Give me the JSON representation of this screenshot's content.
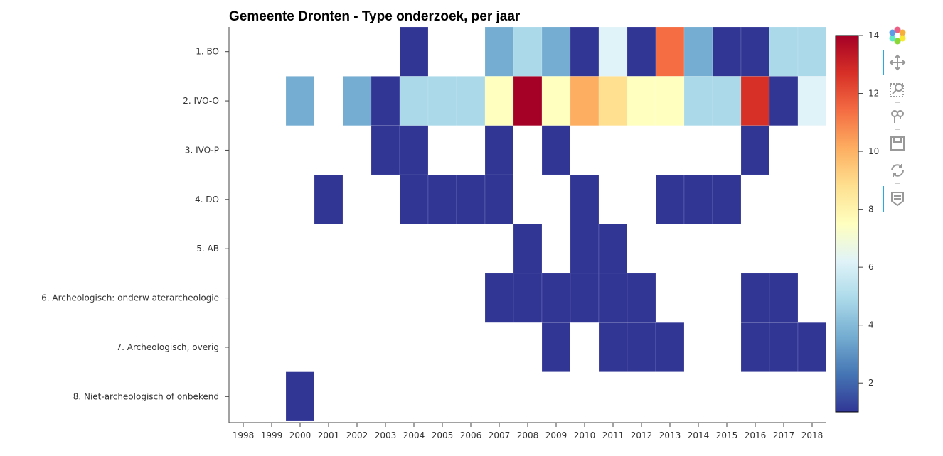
{
  "chart_data": {
    "type": "heatmap",
    "title": "Gemeente Dronten - Type onderzoek, per jaar",
    "x": [
      "1998",
      "1999",
      "2000",
      "2001",
      "2002",
      "2003",
      "2004",
      "2005",
      "2006",
      "2007",
      "2008",
      "2009",
      "2010",
      "2011",
      "2012",
      "2013",
      "2014",
      "2015",
      "2016",
      "2017",
      "2018"
    ],
    "y": [
      "1. BO",
      "2. IVO-O",
      "3. IVO-P",
      "4. DO",
      "5. AB",
      "6. Archeologisch: onderw aterarcheologie",
      "7. Archeologisch, overig",
      "8. Niet-archeologisch of onbekend"
    ],
    "values": [
      [
        null,
        null,
        null,
        null,
        null,
        null,
        1,
        null,
        null,
        4,
        5,
        4,
        2,
        6,
        2,
        11,
        4,
        1,
        2,
        5,
        5
      ],
      [
        null,
        null,
        4,
        null,
        4,
        2,
        5,
        5,
        5,
        7,
        14,
        8,
        10,
        9,
        8,
        7,
        5,
        5,
        12,
        2,
        6
      ],
      [
        null,
        null,
        null,
        null,
        null,
        1,
        1,
        null,
        null,
        1,
        null,
        1,
        null,
        null,
        null,
        null,
        null,
        null,
        1,
        null,
        null
      ],
      [
        null,
        null,
        null,
        1,
        null,
        null,
        1,
        1,
        1,
        1,
        null,
        null,
        2,
        null,
        null,
        1,
        1,
        1,
        null,
        null,
        null
      ],
      [
        null,
        null,
        null,
        null,
        null,
        null,
        null,
        null,
        null,
        null,
        2,
        null,
        2,
        1,
        null,
        null,
        null,
        null,
        null,
        null,
        null
      ],
      [
        null,
        null,
        null,
        null,
        null,
        null,
        null,
        null,
        null,
        1,
        2,
        2,
        2,
        2,
        1,
        null,
        null,
        null,
        1,
        1,
        null
      ],
      [
        null,
        null,
        null,
        null,
        null,
        null,
        null,
        null,
        null,
        null,
        null,
        1,
        null,
        1,
        2,
        2,
        null,
        null,
        1,
        2,
        1
      ],
      [
        null,
        null,
        1,
        null,
        null,
        null,
        null,
        null,
        null,
        null,
        null,
        null,
        null,
        null,
        null,
        null,
        null,
        null,
        null,
        null,
        null
      ]
    ],
    "colorbar": {
      "range": [
        1,
        14
      ],
      "ticks": [
        2,
        4,
        6,
        8,
        10,
        12,
        14
      ],
      "palette": [
        "#313695",
        "#4575b4",
        "#74add1",
        "#abd9e9",
        "#e0f3f8",
        "#ffffbf",
        "#fee090",
        "#fdae61",
        "#f46d43",
        "#d73027",
        "#a50026"
      ]
    },
    "grid": false,
    "legend": "right"
  },
  "toolbar": {
    "tools": [
      {
        "id": "logo",
        "icon": "bokeh-logo-icon"
      },
      {
        "id": "pan",
        "icon": "pan-icon"
      },
      {
        "id": "box-zoom",
        "icon": "box-zoom-icon"
      },
      {
        "id": "wheel-zoom",
        "icon": "wheel-zoom-icon"
      },
      {
        "id": "save",
        "icon": "save-icon"
      },
      {
        "id": "reset",
        "icon": "reset-icon"
      },
      {
        "id": "hover",
        "icon": "hover-icon"
      }
    ]
  }
}
